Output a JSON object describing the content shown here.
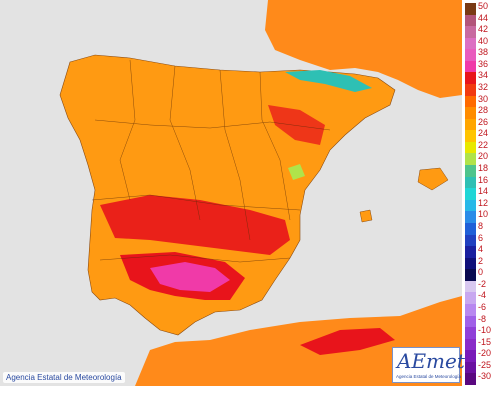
{
  "map": {
    "legend": {
      "labels": [
        "50",
        "44",
        "42",
        "40",
        "38",
        "36",
        "34",
        "32",
        "30",
        "28",
        "26",
        "24",
        "22",
        "20",
        "18",
        "16",
        "14",
        "12",
        "10",
        "8",
        "6",
        "4",
        "2",
        "0",
        "-2",
        "-4",
        "-6",
        "-8",
        "-10",
        "-15",
        "-20",
        "-25",
        "-30"
      ],
      "colors": [
        "#7a3a14",
        "#b2557a",
        "#c86aa0",
        "#dc6fc2",
        "#e95bbd",
        "#f03aa8",
        "#e8141b",
        "#f23a10",
        "#ff6a00",
        "#ff8c00",
        "#ffa500",
        "#ffc400",
        "#e8e800",
        "#b0e34a",
        "#4ec48c",
        "#2ec0b4",
        "#20d6d6",
        "#28b8e8",
        "#2a8ce8",
        "#2060d8",
        "#2040c0",
        "#1a20a0",
        "#10107a",
        "#0a0a50",
        "#d8c8f0",
        "#c8a8f0",
        "#b888f0",
        "#a060e8",
        "#9040d8",
        "#8a2cc8",
        "#7a1ab8",
        "#6a10a0",
        "#5a0880"
      ]
    },
    "credit": "Agencia Estatal de Meteorología",
    "logo": {
      "wordmark": "AEmet",
      "subtitle": "Agencia Estatal de Meteorología"
    }
  }
}
